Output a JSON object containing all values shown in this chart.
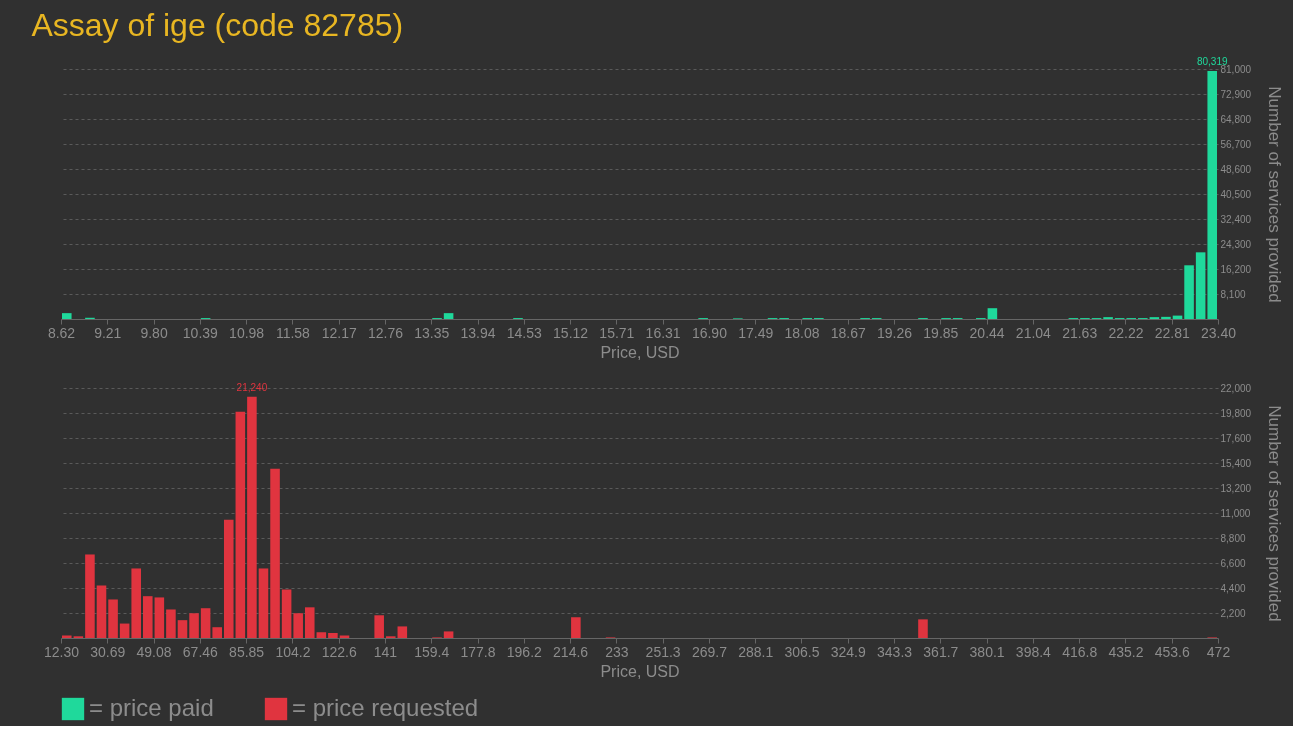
{
  "chart_data": [
    {
      "type": "histogram",
      "title": "Assay of ige (code 82785)",
      "xlabel": "Price, USD",
      "ylabel": "Number of services provided",
      "bins": [
        8.62,
        8.7678,
        8.9156,
        9.0634,
        9.2112,
        9.359,
        9.5068,
        9.6546,
        9.8024,
        9.9502,
        10.098,
        10.2458,
        10.3936,
        10.5414,
        10.6892,
        10.837,
        10.9848,
        11.1326,
        11.2804,
        11.4282,
        11.576,
        11.7238,
        11.8716,
        12.0194,
        12.1672,
        12.315,
        12.4628,
        12.6106,
        12.7584,
        12.9062,
        13.054,
        13.2018,
        13.3496,
        13.4974,
        13.6452,
        13.793,
        13.9408,
        14.0886,
        14.2364,
        14.3842,
        14.532,
        14.6798,
        14.8276,
        14.9754,
        15.1232,
        15.271,
        15.4188,
        15.5666,
        15.7144,
        15.8622,
        16.01,
        16.1578,
        16.3056,
        16.4534,
        16.6012,
        16.749,
        16.8968,
        17.0446,
        17.1924,
        17.3402,
        17.488,
        17.6358,
        17.7836,
        17.9314,
        18.0792,
        18.227,
        18.3748,
        18.5226,
        18.6704,
        18.8182,
        18.966,
        19.1138,
        19.2616,
        19.4094,
        19.5572,
        19.705,
        19.8528,
        20.0006,
        20.1484,
        20.2962,
        20.444,
        20.5918,
        20.7396,
        20.8874,
        21.0352,
        21.183,
        21.3308,
        21.4786,
        21.6264,
        21.7742,
        21.922,
        22.0698,
        22.2176,
        22.3654,
        22.5132,
        22.661,
        22.8088,
        22.9566,
        23.1044,
        23.2522,
        23.4
      ],
      "series": [
        {
          "name": "= price paid",
          "color": "#1fd99b",
          "values": [
            1900,
            0,
            400,
            0,
            0,
            0,
            0,
            0,
            0,
            0,
            0,
            0,
            300,
            0,
            0,
            0,
            0,
            0,
            0,
            0,
            0,
            0,
            0,
            0,
            0,
            0,
            0,
            0,
            0,
            0,
            0,
            0,
            300,
            1900,
            0,
            0,
            0,
            0,
            0,
            300,
            0,
            0,
            0,
            0,
            0,
            0,
            0,
            0,
            0,
            0,
            0,
            0,
            0,
            0,
            0,
            300,
            0,
            0,
            200,
            0,
            0,
            300,
            300,
            0,
            300,
            300,
            0,
            0,
            0,
            300,
            300,
            0,
            0,
            0,
            300,
            0,
            300,
            300,
            0,
            300,
            3500,
            0,
            0,
            0,
            0,
            0,
            0,
            300,
            300,
            300,
            600,
            300,
            300,
            300,
            600,
            700,
            1100,
            17400,
            21600,
            80319
          ]
        }
      ],
      "xlim": [
        8.62,
        23.4
      ],
      "xticks": [
        {
          "value": 8.62,
          "label": "8.62"
        },
        {
          "value": 9.2112,
          "label": "9.21"
        },
        {
          "value": 9.8024,
          "label": "9.80"
        },
        {
          "value": 10.3936,
          "label": "10.39"
        },
        {
          "value": 10.9848,
          "label": "10.98"
        },
        {
          "value": 11.576,
          "label": "11.58"
        },
        {
          "value": 12.1672,
          "label": "12.17"
        },
        {
          "value": 12.7584,
          "label": "12.76"
        },
        {
          "value": 13.3496,
          "label": "13.35"
        },
        {
          "value": 13.9408,
          "label": "13.94"
        },
        {
          "value": 14.532,
          "label": "14.53"
        },
        {
          "value": 15.1232,
          "label": "15.12"
        },
        {
          "value": 15.7144,
          "label": "15.71"
        },
        {
          "value": 16.3056,
          "label": "16.31"
        },
        {
          "value": 16.8968,
          "label": "16.90"
        },
        {
          "value": 17.488,
          "label": "17.49"
        },
        {
          "value": 18.0792,
          "label": "18.08"
        },
        {
          "value": 18.6704,
          "label": "18.67"
        },
        {
          "value": 19.2616,
          "label": "19.26"
        },
        {
          "value": 19.8528,
          "label": "19.85"
        },
        {
          "value": 20.444,
          "label": "20.44"
        },
        {
          "value": 21.0352,
          "label": "21.04"
        },
        {
          "value": 21.6264,
          "label": "21.63"
        },
        {
          "value": 22.2176,
          "label": "22.22"
        },
        {
          "value": 22.8088,
          "label": "22.81"
        },
        {
          "value": 23.4,
          "label": "23.40"
        }
      ],
      "ylim": [
        0,
        81000
      ],
      "yticks": [
        {
          "value": 8100,
          "label": "8,100"
        },
        {
          "value": 16200,
          "label": "16,200"
        },
        {
          "value": 24300,
          "label": "24,300"
        },
        {
          "value": 32400,
          "label": "32,400"
        },
        {
          "value": 40500,
          "label": "40,500"
        },
        {
          "value": 48600,
          "label": "48,600"
        },
        {
          "value": 56700,
          "label": "56,700"
        },
        {
          "value": 64800,
          "label": "64,800"
        },
        {
          "value": 72900,
          "label": "72,900"
        },
        {
          "value": 81000,
          "label": "81,000"
        }
      ],
      "grid": "y",
      "legend": "bottom",
      "annotations": [
        {
          "text": "80,319",
          "x": 23.3261,
          "y": 80319
        }
      ]
    },
    {
      "type": "histogram",
      "xlabel": "Price, USD",
      "ylabel": "Number of services provided",
      "bins": [
        12.3,
        16.897,
        21.494,
        26.091,
        30.688,
        35.285,
        39.882,
        44.479,
        49.076,
        53.673,
        58.27,
        62.867,
        67.464,
        72.061,
        76.658,
        81.255,
        85.852,
        90.449,
        95.046,
        99.643,
        104.24,
        108.837,
        113.434,
        118.031,
        122.628,
        127.225,
        131.822,
        136.419,
        141.016,
        145.613,
        150.21,
        154.807,
        159.404,
        164.001,
        168.598,
        173.195,
        177.792,
        182.389,
        186.986,
        191.583,
        196.18,
        200.777,
        205.374,
        209.971,
        214.568,
        219.165,
        223.762,
        228.359,
        232.956,
        237.553,
        242.15,
        246.747,
        251.344,
        255.941,
        260.538,
        265.135,
        269.732,
        274.329,
        278.926,
        283.523,
        288.12,
        292.717,
        297.314,
        301.911,
        306.508,
        311.105,
        315.702,
        320.299,
        324.896,
        329.493,
        334.09,
        338.687,
        343.284,
        347.881,
        352.478,
        357.075,
        361.672,
        366.269,
        370.866,
        375.463,
        380.06,
        384.657,
        389.254,
        393.851,
        398.448,
        403.045,
        407.642,
        412.239,
        416.836,
        421.433,
        426.03,
        430.627,
        435.224,
        439.821,
        444.418,
        449.015,
        453.612,
        458.209,
        462.806,
        467.403,
        472.0
      ],
      "series": [
        {
          "name": "= price requested",
          "color": "#e0343f",
          "values": [
            220,
            150,
            7350,
            4620,
            3390,
            1270,
            6120,
            3680,
            3570,
            2510,
            1570,
            2180,
            2620,
            950,
            10410,
            19920,
            21240,
            6120,
            14890,
            4260,
            2180,
            2700,
            510,
            440,
            220,
            0,
            0,
            2000,
            150,
            1020,
            0,
            0,
            50,
            580,
            0,
            0,
            0,
            0,
            0,
            0,
            0,
            0,
            0,
            0,
            1820,
            0,
            0,
            50,
            0,
            0,
            0,
            0,
            0,
            0,
            0,
            0,
            0,
            0,
            0,
            0,
            0,
            0,
            0,
            0,
            0,
            0,
            0,
            0,
            0,
            0,
            0,
            0,
            0,
            0,
            1640,
            0,
            0,
            0,
            0,
            0,
            0,
            0,
            0,
            0,
            0,
            0,
            0,
            0,
            0,
            0,
            0,
            0,
            0,
            0,
            0,
            0,
            0,
            0,
            0,
            50
          ]
        }
      ],
      "xlim": [
        12.3,
        472.0
      ],
      "xticks": [
        {
          "value": 12.3,
          "label": "12.30"
        },
        {
          "value": 30.688,
          "label": "30.69"
        },
        {
          "value": 49.076,
          "label": "49.08"
        },
        {
          "value": 67.464,
          "label": "67.46"
        },
        {
          "value": 85.852,
          "label": "85.85"
        },
        {
          "value": 104.24,
          "label": "104.2"
        },
        {
          "value": 122.628,
          "label": "122.6"
        },
        {
          "value": 141.016,
          "label": "141"
        },
        {
          "value": 159.404,
          "label": "159.4"
        },
        {
          "value": 177.792,
          "label": "177.8"
        },
        {
          "value": 196.18,
          "label": "196.2"
        },
        {
          "value": 214.568,
          "label": "214.6"
        },
        {
          "value": 232.956,
          "label": "233"
        },
        {
          "value": 251.344,
          "label": "251.3"
        },
        {
          "value": 269.732,
          "label": "269.7"
        },
        {
          "value": 288.12,
          "label": "288.1"
        },
        {
          "value": 306.508,
          "label": "306.5"
        },
        {
          "value": 324.896,
          "label": "324.9"
        },
        {
          "value": 343.284,
          "label": "343.3"
        },
        {
          "value": 361.672,
          "label": "361.7"
        },
        {
          "value": 380.06,
          "label": "380.1"
        },
        {
          "value": 398.448,
          "label": "398.4"
        },
        {
          "value": 416.836,
          "label": "416.8"
        },
        {
          "value": 435.224,
          "label": "435.2"
        },
        {
          "value": 453.612,
          "label": "453.6"
        },
        {
          "value": 472.0,
          "label": "472"
        }
      ],
      "ylim": [
        0,
        22000
      ],
      "yticks": [
        {
          "value": 2200,
          "label": "2,200"
        },
        {
          "value": 4400,
          "label": "4,400"
        },
        {
          "value": 6600,
          "label": "6,600"
        },
        {
          "value": 8800,
          "label": "8,800"
        },
        {
          "value": 11000,
          "label": "11,000"
        },
        {
          "value": 13200,
          "label": "13,200"
        },
        {
          "value": 15400,
          "label": "15,400"
        },
        {
          "value": 17600,
          "label": "17,600"
        },
        {
          "value": 19800,
          "label": "19,800"
        },
        {
          "value": 22000,
          "label": "22,000"
        }
      ],
      "grid": "y",
      "legend": "bottom",
      "annotations": [
        {
          "text": "21,240",
          "x": 88.1505,
          "y": 21240
        }
      ]
    }
  ]
}
